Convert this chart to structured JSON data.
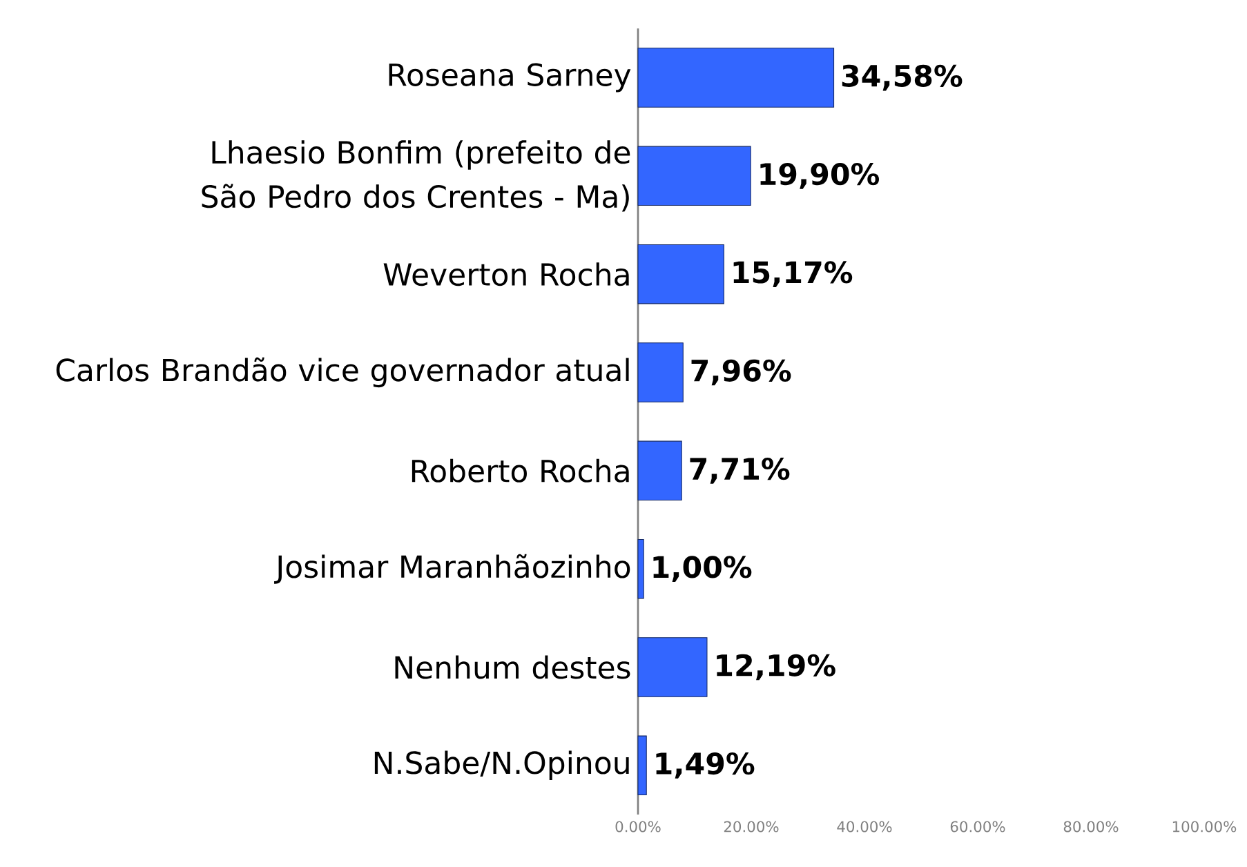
{
  "chart_data": {
    "type": "bar",
    "orientation": "horizontal",
    "categories": [
      "Roseana Sarney",
      "Lhaesio Bonfim (prefeito de São Pedro dos Crentes - Ma)",
      "Weverton Rocha",
      "Carlos Brandão vice governador atual",
      "Roberto Rocha",
      "Josimar Maranhãozinho",
      "Nenhum destes",
      "N.Sabe/N.Opinou"
    ],
    "values": [
      34.58,
      19.9,
      15.17,
      7.96,
      7.71,
      1.0,
      12.19,
      1.49
    ],
    "value_labels": [
      "34,58%",
      "19,90%",
      "15,17%",
      "7,96%",
      "7,71%",
      "1,00%",
      "12,19%",
      "1,49%"
    ],
    "color": "#3366ff",
    "xlim": [
      0,
      100
    ],
    "xticks": [
      {
        "value": 0,
        "label": "0.00%"
      },
      {
        "value": 20,
        "label": "20.00%"
      },
      {
        "value": 40,
        "label": "40.00%"
      },
      {
        "value": 60,
        "label": "60.00%"
      },
      {
        "value": 80,
        "label": "80.00%"
      },
      {
        "value": 100,
        "label": "100.00%"
      }
    ],
    "data_labels": false
  }
}
